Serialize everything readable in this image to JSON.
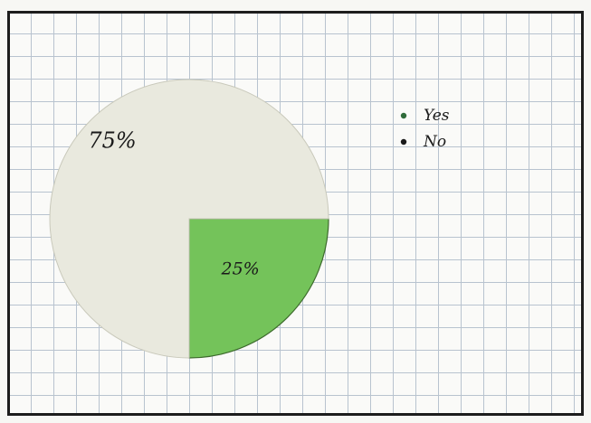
{
  "chart_data": {
    "type": "pie",
    "title": "",
    "categories": [
      "Yes",
      "No"
    ],
    "values": [
      25,
      75
    ],
    "data_labels": [
      "25%",
      "75%"
    ],
    "colors": [
      "#74c35a",
      "#e9e9de"
    ],
    "legend": {
      "placement": "top-right",
      "entries": [
        {
          "label": "Yes",
          "marker_color": "#2f6b3a"
        },
        {
          "label": "No",
          "marker_color": "#1a1a1a"
        }
      ]
    }
  }
}
